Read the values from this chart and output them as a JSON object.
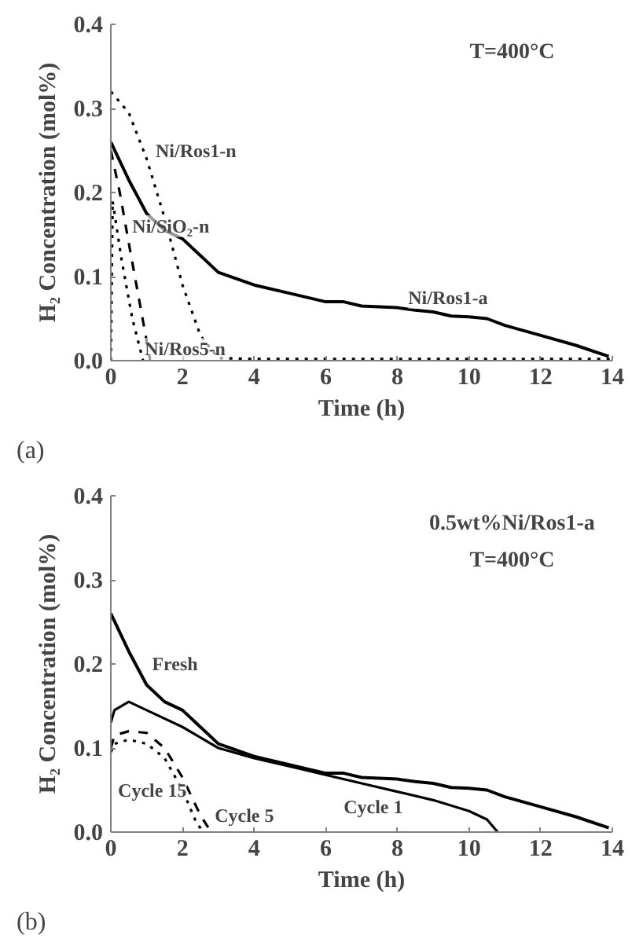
{
  "chart_data": [
    {
      "type": "line",
      "xlabel": "Time (h)",
      "ylabel": "H₂ Concentration (mol%)",
      "xlim": [
        0,
        14
      ],
      "ylim": [
        0,
        0.4
      ],
      "xticks": [
        0,
        2,
        4,
        6,
        8,
        10,
        12,
        14
      ],
      "yticks": [
        {
          "value": 0,
          "label": "0.0"
        },
        0.1,
        0.2,
        0.3,
        0.4
      ],
      "grid": false,
      "legend": false,
      "annotations": [
        "T=400°C",
        "(a)"
      ],
      "series": [
        {
          "name": "Ni/Ros1-a",
          "color": "#000000",
          "line_style": "solid",
          "x": [
            0,
            0.5,
            1,
            1.5,
            2,
            2.5,
            3,
            4,
            5,
            6,
            6.5,
            7,
            8,
            8.5,
            9,
            9.5,
            10,
            10.5,
            11,
            12,
            13,
            13.9
          ],
          "values": [
            0.26,
            0.215,
            0.175,
            0.155,
            0.145,
            0.125,
            0.105,
            0.09,
            0.08,
            0.07,
            0.07,
            0.065,
            0.063,
            0.06,
            0.058,
            0.053,
            0.052,
            0.05,
            0.042,
            0.03,
            0.018,
            0.005
          ]
        },
        {
          "name": "Ni/Ros1-n",
          "color": "#000000",
          "line_style": "dotted",
          "x": [
            0,
            0.5,
            1,
            1.5,
            2,
            2.5,
            3,
            4,
            6,
            8,
            10,
            12,
            14
          ],
          "values": [
            0.32,
            0.295,
            0.24,
            0.17,
            0.09,
            0.03,
            0.003,
            0.002,
            0.002,
            0.002,
            0.002,
            0.002,
            0.002
          ]
        },
        {
          "name": "Ni/SiO₂-n",
          "color": "#000000",
          "line_style": "dashed",
          "x": [
            0,
            0.25,
            0.5,
            0.8,
            1.1
          ],
          "values": [
            0.25,
            0.2,
            0.14,
            0.07,
            0
          ]
        },
        {
          "name": "Ni/Ros5-n",
          "color": "#000000",
          "line_style": "dotted",
          "x": [
            0,
            0.05,
            0.3,
            0.6,
            0.9
          ],
          "values": [
            0,
            0.19,
            0.12,
            0.05,
            0
          ]
        }
      ]
    },
    {
      "type": "line",
      "xlabel": "Time (h)",
      "ylabel": "H₂ Concentration (mol%)",
      "xlim": [
        0,
        14
      ],
      "ylim": [
        0,
        0.4
      ],
      "xticks": [
        0,
        2,
        4,
        6,
        8,
        10,
        12,
        14
      ],
      "yticks": [
        {
          "value": 0,
          "label": "0.0"
        },
        0.1,
        0.2,
        0.3,
        0.4
      ],
      "grid": false,
      "legend": false,
      "annotations": [
        "0.5wt%Ni/Ros1-a",
        "T=400°C",
        "(b)"
      ],
      "series": [
        {
          "name": "Fresh",
          "color": "#000000",
          "line_style": "solid",
          "x": [
            0,
            0.5,
            1,
            1.5,
            2,
            2.5,
            3,
            4,
            5,
            6,
            6.5,
            7,
            8,
            8.5,
            9,
            9.5,
            10,
            10.5,
            11,
            12,
            13,
            13.9
          ],
          "values": [
            0.26,
            0.215,
            0.175,
            0.155,
            0.145,
            0.125,
            0.105,
            0.09,
            0.08,
            0.07,
            0.07,
            0.065,
            0.063,
            0.06,
            0.058,
            0.053,
            0.052,
            0.05,
            0.042,
            0.03,
            0.018,
            0.005
          ]
        },
        {
          "name": "Cycle 1",
          "color": "#000000",
          "line_style": "solid",
          "x": [
            0,
            0.1,
            0.5,
            1,
            2,
            3,
            4,
            5,
            6,
            7,
            8,
            9,
            10,
            10.5,
            10.8
          ],
          "values": [
            0.13,
            0.145,
            0.155,
            0.145,
            0.125,
            0.1,
            0.088,
            0.078,
            0.068,
            0.058,
            0.048,
            0.038,
            0.025,
            0.015,
            0
          ]
        },
        {
          "name": "Cycle 15",
          "color": "#000000",
          "line_style": "dotted",
          "x": [
            0,
            0.1,
            0.5,
            1,
            1.5,
            2,
            2.4,
            2.6
          ],
          "values": [
            0.095,
            0.105,
            0.11,
            0.105,
            0.088,
            0.05,
            0.01,
            0
          ]
        },
        {
          "name": "Cycle 5",
          "color": "#000000",
          "line_style": "dashed",
          "x": [
            0,
            0.1,
            0.5,
            1,
            1.5,
            2,
            2.5,
            2.8
          ],
          "values": [
            0.1,
            0.115,
            0.12,
            0.118,
            0.1,
            0.065,
            0.02,
            0
          ]
        }
      ]
    }
  ]
}
